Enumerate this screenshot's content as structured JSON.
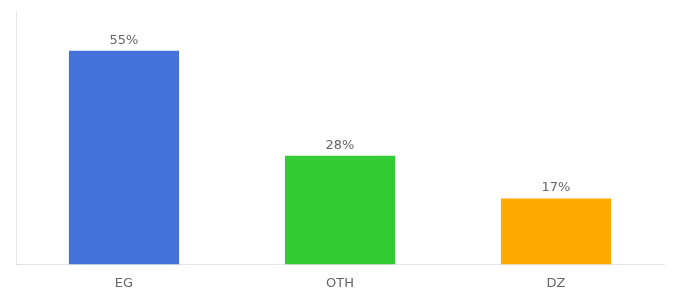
{
  "chart_data": {
    "type": "bar",
    "categories": [
      "EG",
      "OTH",
      "DZ"
    ],
    "values": [
      55,
      28,
      17
    ],
    "value_labels": [
      "55%",
      "28%",
      "17%"
    ],
    "colors": [
      "#4472db",
      "#33cc33",
      "#ffaa00"
    ],
    "ylim": [
      0,
      65
    ],
    "grid": false,
    "tick_labels": "x",
    "data_labels": true
  }
}
